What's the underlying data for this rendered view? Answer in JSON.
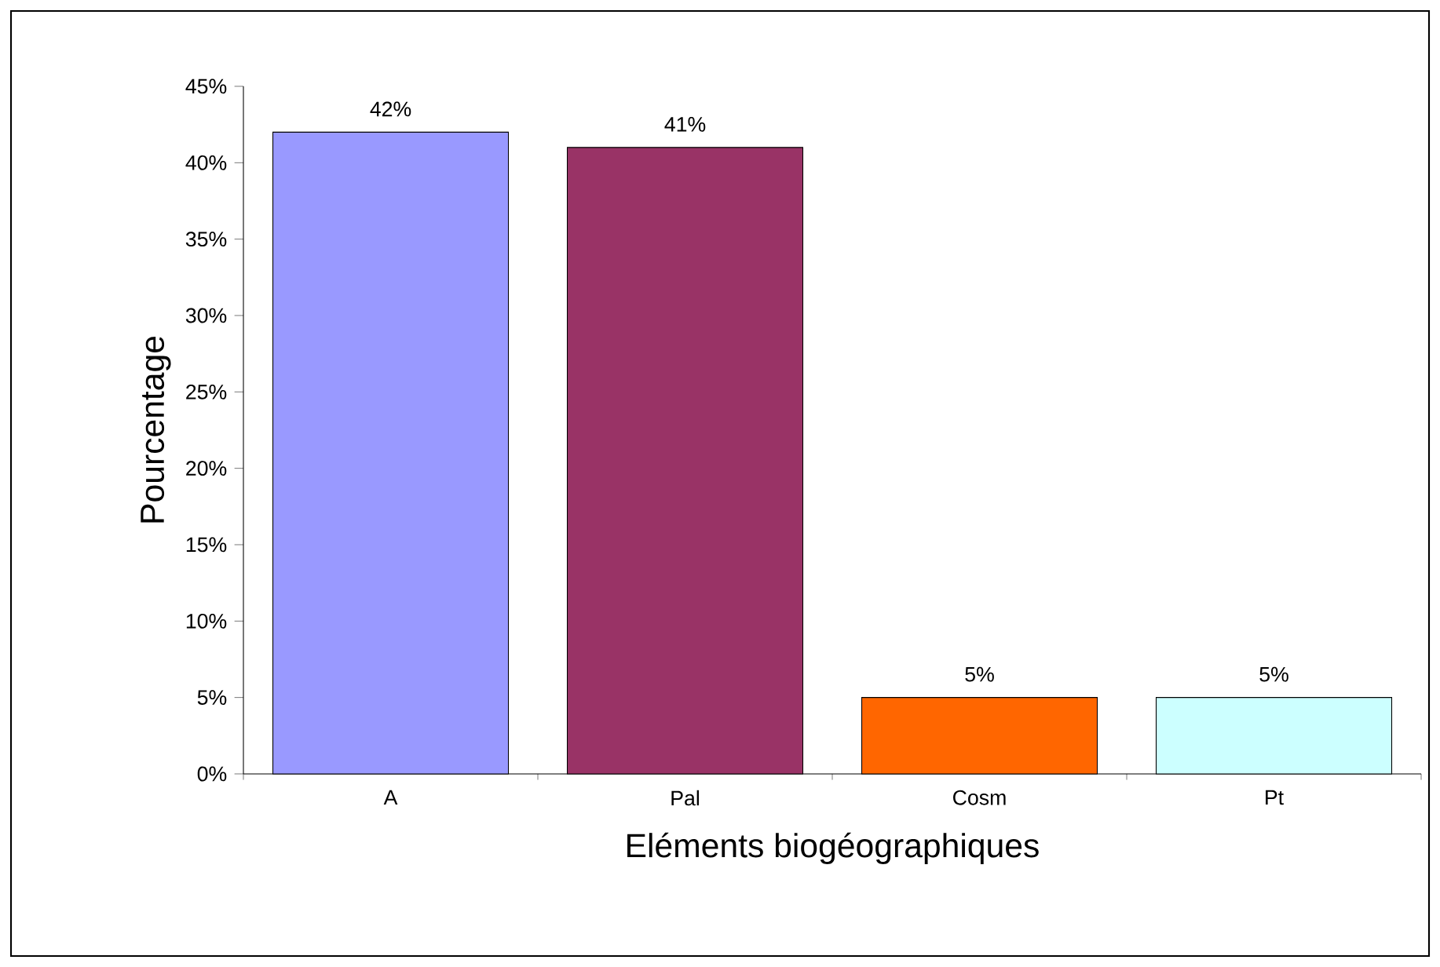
{
  "chart_data": {
    "type": "bar",
    "xlabel": "Eléments biogéographiques",
    "ylabel": "Pourcentage",
    "categories": [
      "A",
      "Pal",
      "Cosm",
      "Pt"
    ],
    "values": [
      42,
      41,
      5,
      5
    ],
    "colors": [
      "#9999ff",
      "#993366",
      "#ff6600",
      "#ccffff"
    ],
    "value_labels": [
      "42%",
      "41%",
      "5%",
      "5%"
    ],
    "ylim": [
      0,
      45
    ],
    "yticks": [
      {
        "value": 0,
        "label": "0%"
      },
      {
        "value": 5,
        "label": "5%"
      },
      {
        "value": 10,
        "label": "10%"
      },
      {
        "value": 15,
        "label": "15%"
      },
      {
        "value": 20,
        "label": "20%"
      },
      {
        "value": 25,
        "label": "25%"
      },
      {
        "value": 30,
        "label": "30%"
      },
      {
        "value": 35,
        "label": "35%"
      },
      {
        "value": 40,
        "label": "40%"
      },
      {
        "value": 45,
        "label": "45%"
      }
    ]
  }
}
